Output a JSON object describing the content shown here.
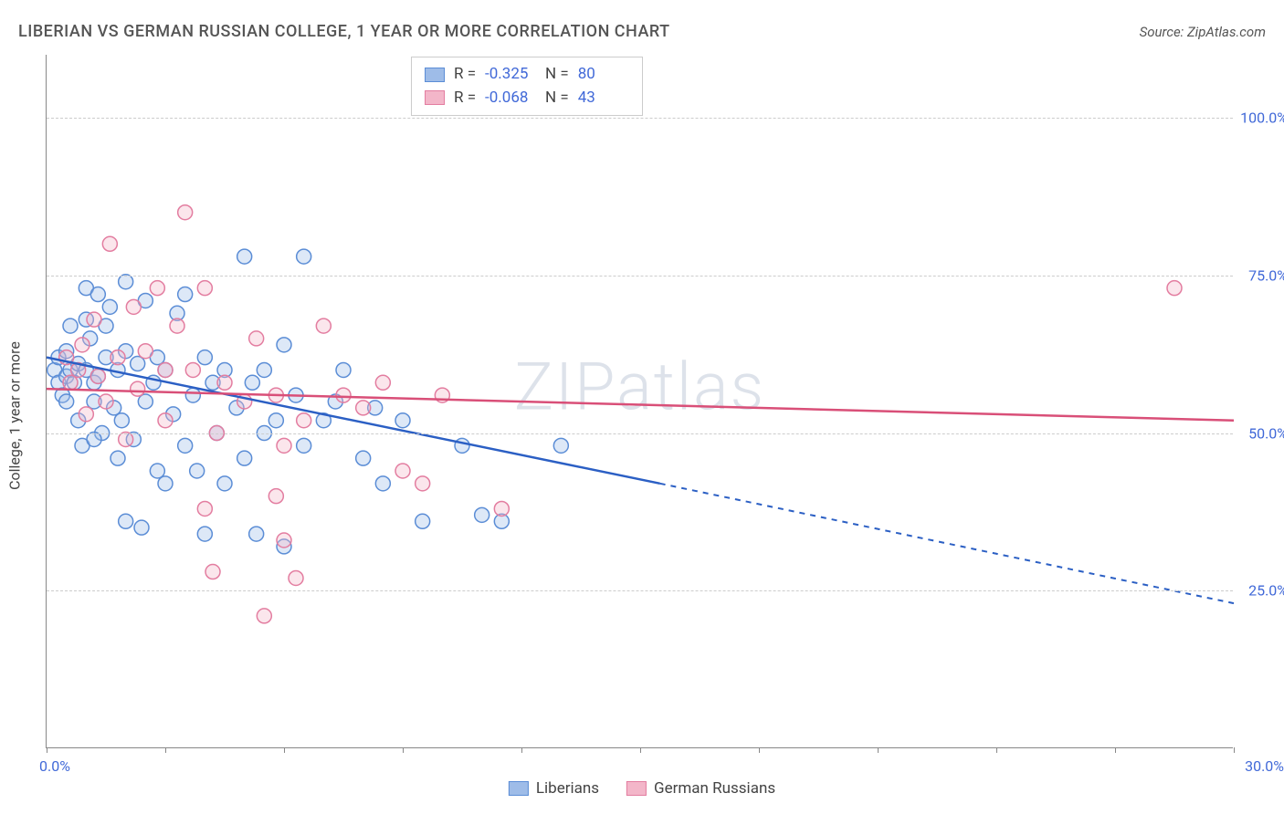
{
  "title": "LIBERIAN VS GERMAN RUSSIAN COLLEGE, 1 YEAR OR MORE CORRELATION CHART",
  "source_label": "Source: ZipAtlas.com",
  "y_axis_label": "College, 1 year or more",
  "watermark": "ZIPatlas",
  "chart": {
    "type": "scatter",
    "xlim": [
      0,
      30
    ],
    "ylim": [
      0,
      110
    ],
    "x_ticks": [
      0,
      3,
      6,
      9,
      12,
      15,
      18,
      21,
      24,
      27,
      30
    ],
    "x_tick_labels_shown": {
      "0": "0.0%",
      "30": "30.0%"
    },
    "y_gridlines": [
      25,
      50,
      75,
      100
    ],
    "y_tick_labels": {
      "25": "25.0%",
      "50": "50.0%",
      "75": "75.0%",
      "100": "100.0%"
    },
    "background_color": "#ffffff",
    "grid_color": "#cccccc",
    "marker_radius": 8,
    "marker_stroke_width": 1.5,
    "marker_fill_opacity": 0.35,
    "series": [
      {
        "name": "Liberians",
        "color_stroke": "#5b8dd6",
        "color_fill": "#9ebce8",
        "R": "-0.325",
        "N": "80",
        "trend": {
          "x1": 0,
          "y1": 62,
          "x2_solid": 15.5,
          "y2_solid": 42,
          "x2_dash": 30,
          "y2_dash": 23,
          "color": "#2b5fc4",
          "width": 2.5
        },
        "points": [
          [
            0.2,
            60
          ],
          [
            0.3,
            58
          ],
          [
            0.3,
            62
          ],
          [
            0.4,
            56
          ],
          [
            0.5,
            55
          ],
          [
            0.5,
            63
          ],
          [
            0.5,
            59
          ],
          [
            0.6,
            67
          ],
          [
            0.6,
            60
          ],
          [
            0.7,
            58
          ],
          [
            0.8,
            52
          ],
          [
            0.8,
            61
          ],
          [
            0.9,
            48
          ],
          [
            1.0,
            68
          ],
          [
            1.0,
            60
          ],
          [
            1.0,
            73
          ],
          [
            1.1,
            65
          ],
          [
            1.2,
            55
          ],
          [
            1.2,
            58
          ],
          [
            1.3,
            72
          ],
          [
            1.3,
            59
          ],
          [
            1.4,
            50
          ],
          [
            1.5,
            67
          ],
          [
            1.5,
            62
          ],
          [
            1.6,
            70
          ],
          [
            1.7,
            54
          ],
          [
            1.8,
            60
          ],
          [
            1.8,
            46
          ],
          [
            1.9,
            52
          ],
          [
            2.0,
            63
          ],
          [
            2.0,
            74
          ],
          [
            2.2,
            49
          ],
          [
            2.3,
            61
          ],
          [
            2.4,
            35
          ],
          [
            2.5,
            71
          ],
          [
            2.5,
            55
          ],
          [
            2.7,
            58
          ],
          [
            2.8,
            44
          ],
          [
            2.8,
            62
          ],
          [
            3.0,
            42
          ],
          [
            3.0,
            60
          ],
          [
            3.2,
            53
          ],
          [
            3.3,
            69
          ],
          [
            3.5,
            72
          ],
          [
            3.5,
            48
          ],
          [
            3.7,
            56
          ],
          [
            3.8,
            44
          ],
          [
            4.0,
            62
          ],
          [
            4.0,
            34
          ],
          [
            4.2,
            58
          ],
          [
            4.3,
            50
          ],
          [
            4.5,
            60
          ],
          [
            4.5,
            42
          ],
          [
            4.8,
            54
          ],
          [
            5.0,
            78
          ],
          [
            5.0,
            46
          ],
          [
            5.2,
            58
          ],
          [
            5.3,
            34
          ],
          [
            5.5,
            60
          ],
          [
            5.5,
            50
          ],
          [
            5.8,
            52
          ],
          [
            6.0,
            64
          ],
          [
            6.0,
            32
          ],
          [
            6.3,
            56
          ],
          [
            6.5,
            78
          ],
          [
            6.5,
            48
          ],
          [
            7.0,
            52
          ],
          [
            7.3,
            55
          ],
          [
            7.5,
            60
          ],
          [
            8.0,
            46
          ],
          [
            8.3,
            54
          ],
          [
            8.5,
            42
          ],
          [
            9.0,
            52
          ],
          [
            9.5,
            36
          ],
          [
            10.5,
            48
          ],
          [
            11.0,
            37
          ],
          [
            11.5,
            36
          ],
          [
            13.0,
            48
          ],
          [
            2.0,
            36
          ],
          [
            1.2,
            49
          ]
        ]
      },
      {
        "name": "German Russians",
        "color_stroke": "#e37da0",
        "color_fill": "#f3b6c9",
        "R": "-0.068",
        "N": "43",
        "trend": {
          "x1": 0,
          "y1": 57,
          "x2_solid": 30,
          "y2_solid": 52,
          "x2_dash": 30,
          "y2_dash": 52,
          "color": "#d94f78",
          "width": 2.5
        },
        "points": [
          [
            0.5,
            62
          ],
          [
            0.6,
            58
          ],
          [
            0.8,
            60
          ],
          [
            0.9,
            64
          ],
          [
            1.0,
            53
          ],
          [
            1.2,
            68
          ],
          [
            1.3,
            59
          ],
          [
            1.5,
            55
          ],
          [
            1.6,
            80
          ],
          [
            1.8,
            62
          ],
          [
            2.0,
            49
          ],
          [
            2.2,
            70
          ],
          [
            2.3,
            57
          ],
          [
            2.5,
            63
          ],
          [
            2.8,
            73
          ],
          [
            3.0,
            52
          ],
          [
            3.3,
            67
          ],
          [
            3.5,
            85
          ],
          [
            3.7,
            60
          ],
          [
            4.0,
            38
          ],
          [
            4.0,
            73
          ],
          [
            4.3,
            50
          ],
          [
            4.5,
            58
          ],
          [
            5.0,
            55
          ],
          [
            5.3,
            65
          ],
          [
            5.8,
            56
          ],
          [
            6.0,
            48
          ],
          [
            6.3,
            27
          ],
          [
            6.5,
            52
          ],
          [
            7.0,
            67
          ],
          [
            7.5,
            56
          ],
          [
            8.0,
            54
          ],
          [
            8.5,
            58
          ],
          [
            9.0,
            44
          ],
          [
            9.5,
            42
          ],
          [
            10.0,
            56
          ],
          [
            4.2,
            28
          ],
          [
            5.5,
            21
          ],
          [
            6.0,
            33
          ],
          [
            5.8,
            40
          ],
          [
            11.5,
            38
          ],
          [
            28.5,
            73
          ],
          [
            3.0,
            60
          ]
        ]
      }
    ]
  },
  "stats_legend": {
    "rows": [
      {
        "swatch_fill": "#9ebce8",
        "swatch_stroke": "#5b8dd6",
        "R_label": "R =",
        "R_value": "-0.325",
        "N_label": "N =",
        "N_value": "80"
      },
      {
        "swatch_fill": "#f3b6c9",
        "swatch_stroke": "#e37da0",
        "R_label": "R =",
        "R_value": "-0.068",
        "N_label": "N =",
        "N_value": "43"
      }
    ]
  },
  "bottom_legend": {
    "items": [
      {
        "swatch_fill": "#9ebce8",
        "swatch_stroke": "#5b8dd6",
        "label": "Liberians"
      },
      {
        "swatch_fill": "#f3b6c9",
        "swatch_stroke": "#e37da0",
        "label": "German Russians"
      }
    ]
  }
}
